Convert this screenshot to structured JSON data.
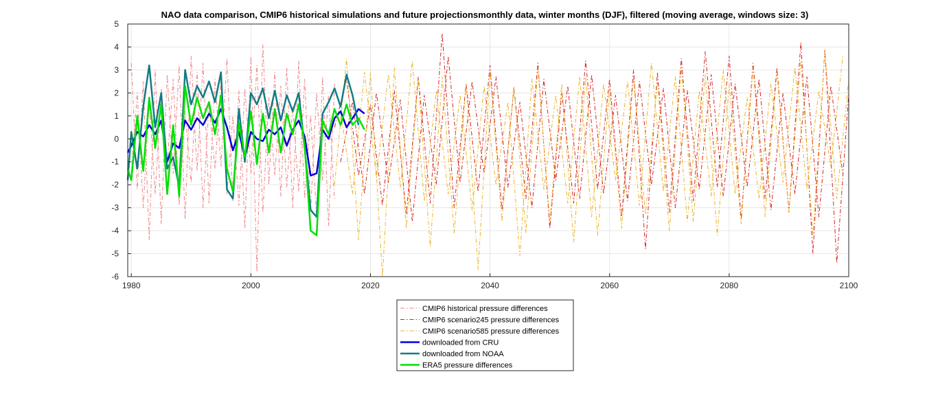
{
  "chart_data": {
    "type": "line",
    "title": "NAO data comparison, CMIP6 historical simulations and future projectionsmonthly data, winter months (DJF), filtered (moving average, windows size: 3)",
    "xlabel": "",
    "ylabel": "",
    "xlim": [
      1979.4,
      2100
    ],
    "ylim": [
      -6,
      5
    ],
    "x_ticks": [
      1980,
      2000,
      2020,
      2040,
      2060,
      2080,
      2100
    ],
    "y_ticks": [
      5,
      4,
      3,
      2,
      1,
      0,
      -1,
      -2,
      -3,
      -4,
      -5,
      -6
    ],
    "grid": true,
    "legend_position": "below",
    "series": [
      {
        "name": "CMIP6 historical pressure differences",
        "color": "#f08080",
        "style": "dashdot",
        "width": 1,
        "x": [
          1980,
          1981,
          1982,
          1983,
          1984,
          1985,
          1986,
          1987,
          1988,
          1989,
          1990,
          1991,
          1992,
          1993,
          1994,
          1995,
          1996,
          1997,
          1998,
          1999,
          2000,
          2001,
          2002,
          2003,
          2004,
          2005,
          2006,
          2007,
          2008,
          2009,
          2010,
          2011,
          2012,
          2013,
          2014
        ],
        "values": [
          3.3,
          -2.2,
          2.5,
          -4.4,
          3.0,
          -3.7,
          2.8,
          -1.5,
          3.2,
          -3.5,
          3.6,
          -1.4,
          3.3,
          -2.8,
          2.6,
          -1.2,
          3.5,
          -2.7,
          2.1,
          -3.9,
          3.6,
          -5.8,
          4.1,
          -2.0,
          2.9,
          -2.5,
          3.1,
          -3.0,
          3.4,
          -2.6,
          1.0,
          -3.4,
          2.7,
          -3.8,
          2.4
        ]
      },
      {
        "name": "CMIP6 historical pressure differences",
        "color": "#f08080",
        "style": "dashdot",
        "width": 1,
        "x": [
          1980,
          1981,
          1982,
          1983,
          1984,
          1985,
          1986,
          1987,
          1988,
          1989,
          1990,
          1991,
          1992,
          1993,
          1994,
          1995,
          1996,
          1997,
          1998,
          1999,
          2000,
          2001,
          2002,
          2003,
          2004,
          2005,
          2006,
          2007,
          2008,
          2009,
          2010,
          2011,
          2012,
          2013,
          2014
        ],
        "values": [
          -1.5,
          2.0,
          -3.0,
          1.6,
          -2.4,
          2.2,
          -1.1,
          2.6,
          -2.9,
          1.2,
          -1.9,
          2.9,
          -3.0,
          1.5,
          -1.3,
          2.5,
          -2.4,
          1.0,
          -2.9,
          2.2,
          -1.5,
          3.2,
          -3.2,
          1.8,
          -1.6,
          2.3,
          -2.1,
          1.4,
          -2.3,
          2.6,
          -3.1,
          2.0,
          -1.8,
          1.9,
          -2.7
        ]
      },
      {
        "name": "CMIP6 scenario245 pressure differences",
        "color": "#d81e1e",
        "style": "dashdot",
        "width": 1,
        "x": [
          2014,
          2016,
          2018,
          2020,
          2022,
          2024,
          2026,
          2028,
          2030,
          2032,
          2034,
          2036,
          2038,
          2040,
          2042,
          2044,
          2046,
          2048,
          2050,
          2052,
          2054,
          2056,
          2058,
          2060,
          2062,
          2064,
          2066,
          2068,
          2070,
          2072,
          2074,
          2076,
          2078,
          2080,
          2082,
          2084,
          2086,
          2088,
          2090,
          2092,
          2094,
          2096,
          2098,
          2100
        ],
        "values": [
          0.5,
          2.6,
          -1.6,
          1.5,
          -2.9,
          2.1,
          -3.3,
          2.7,
          -2.8,
          4.6,
          -3.0,
          2.4,
          -2.3,
          3.2,
          -3.1,
          2.2,
          -2.6,
          3.3,
          -3.9,
          2.0,
          -2.8,
          3.4,
          -2.2,
          2.6,
          -3.4,
          3.0,
          -4.8,
          2.9,
          -3.2,
          3.5,
          -2.7,
          3.8,
          -2.1,
          3.6,
          -3.5,
          3.3,
          -2.6,
          3.1,
          -3.2,
          4.2,
          -5.0,
          3.9,
          -5.4,
          2.0
        ]
      },
      {
        "name": "CMIP6 scenario245 pressure differences",
        "color": "#d81e1e",
        "style": "dashdot",
        "width": 1,
        "x": [
          2015,
          2017,
          2019,
          2021,
          2023,
          2025,
          2027,
          2029,
          2031,
          2033,
          2035,
          2037,
          2039,
          2041,
          2043,
          2045,
          2047,
          2049,
          2051,
          2053,
          2055,
          2057,
          2059,
          2061,
          2063,
          2065,
          2067,
          2069,
          2071,
          2073,
          2075,
          2077,
          2079,
          2081,
          2083,
          2085,
          2087,
          2089,
          2091,
          2093,
          2095,
          2097,
          2099
        ],
        "values": [
          -1.0,
          1.6,
          -2.4,
          2.0,
          -1.9,
          1.7,
          -3.6,
          1.9,
          -2.0,
          3.6,
          -1.9,
          2.5,
          -1.5,
          2.7,
          -2.1,
          1.6,
          -3.0,
          2.6,
          -1.8,
          2.3,
          -2.6,
          2.8,
          -2.4,
          1.9,
          -2.7,
          2.5,
          -2.0,
          2.2,
          -3.0,
          2.1,
          -2.2,
          2.8,
          -2.5,
          2.4,
          -2.1,
          2.6,
          -3.1,
          2.0,
          -2.4,
          2.7,
          -3.4,
          2.3,
          -1.5
        ]
      },
      {
        "name": "CMIP6 scenario585 pressure differences",
        "color": "#eeb220",
        "style": "dashdot",
        "width": 1,
        "x": [
          2014,
          2016,
          2018,
          2020,
          2022,
          2024,
          2026,
          2028,
          2030,
          2032,
          2034,
          2036,
          2038,
          2040,
          2042,
          2044,
          2046,
          2048,
          2050,
          2052,
          2054,
          2056,
          2058,
          2060,
          2062,
          2064,
          2066,
          2068,
          2070,
          2072,
          2074,
          2076,
          2078,
          2080,
          2082,
          2084,
          2086,
          2088,
          2090,
          2092,
          2094,
          2096,
          2098,
          2100
        ],
        "values": [
          -2.0,
          3.5,
          -4.4,
          2.9,
          -6.0,
          3.1,
          -3.9,
          2.6,
          -4.7,
          2.7,
          -4.1,
          2.4,
          -5.7,
          2.9,
          -3.6,
          2.3,
          -4.1,
          3.1,
          -3.6,
          2.4,
          -4.5,
          2.7,
          -4.2,
          2.2,
          -3.9,
          2.7,
          -3.3,
          2.5,
          -4.0,
          3.1,
          -3.6,
          2.8,
          -4.2,
          2.4,
          -3.7,
          3.1,
          -3.4,
          2.9,
          -3.2,
          3.4,
          -4.2,
          3.8,
          -2.6,
          2.6
        ]
      },
      {
        "name": "CMIP6 scenario585 pressure differences",
        "color": "#eeb220",
        "style": "dashdot",
        "width": 1,
        "x": [
          2015,
          2017,
          2019,
          2021,
          2023,
          2025,
          2027,
          2029,
          2031,
          2033,
          2035,
          2037,
          2039,
          2041,
          2043,
          2045,
          2047,
          2049,
          2051,
          2053,
          2055,
          2057,
          2059,
          2061,
          2063,
          2065,
          2067,
          2069,
          2071,
          2073,
          2075,
          2077,
          2079,
          2081,
          2083,
          2085,
          2087,
          2089,
          2091,
          2093,
          2095,
          2097,
          2099
        ],
        "values": [
          1.2,
          -2.4,
          2.9,
          -1.7,
          2.8,
          -2.1,
          3.4,
          -2.7,
          2.1,
          -2.4,
          1.9,
          -3.1,
          2.3,
          -2.0,
          1.6,
          -5.1,
          2.6,
          -2.2,
          1.9,
          -2.8,
          2.7,
          -3.4,
          2.4,
          -1.8,
          2.5,
          -2.9,
          3.3,
          -2.3,
          2.7,
          -3.6,
          2.1,
          -2.5,
          3.0,
          -2.4,
          1.8,
          -2.6,
          2.4,
          -1.9,
          3.1,
          -2.2,
          2.1,
          -1.2,
          3.6
        ]
      },
      {
        "name": "downloaded from CRU",
        "color": "#0000d8",
        "style": "solid",
        "width": 2.5,
        "x": [
          1979.4,
          1980,
          1981,
          1982,
          1983,
          1984,
          1985,
          1986,
          1987,
          1988,
          1989,
          1990,
          1991,
          1992,
          1993,
          1994,
          1995,
          1996,
          1997,
          1998,
          1999,
          2000,
          2001,
          2002,
          2003,
          2004,
          2005,
          2006,
          2007,
          2008,
          2009,
          2010,
          2011,
          2012,
          2013,
          2014,
          2015,
          2016,
          2017,
          2018,
          2019
        ],
        "values": [
          -0.6,
          -0.3,
          0.3,
          0.1,
          0.6,
          0.2,
          0.8,
          -1.0,
          -0.2,
          -0.4,
          0.8,
          0.4,
          0.9,
          0.6,
          1.1,
          0.7,
          1.3,
          0.5,
          -0.5,
          0.3,
          -0.8,
          0.3,
          0.0,
          -0.1,
          0.4,
          0.2,
          0.5,
          -0.3,
          0.4,
          0.8,
          0.1,
          -1.6,
          -1.5,
          0.4,
          0.0,
          0.9,
          1.2,
          0.5,
          0.9,
          1.3,
          1.1
        ]
      },
      {
        "name": "downloaded from NOAA",
        "color": "#127c84",
        "style": "solid",
        "width": 2.5,
        "x": [
          1979.4,
          1980,
          1981,
          1982,
          1983,
          1984,
          1985,
          1986,
          1987,
          1988,
          1989,
          1990,
          1991,
          1992,
          1993,
          1994,
          1995,
          1996,
          1997,
          1998,
          1999,
          2000,
          2001,
          2002,
          2003,
          2004,
          2005,
          2006,
          2007,
          2008,
          2009,
          2010,
          2011,
          2012,
          2013,
          2014,
          2015,
          2016,
          2017,
          2018
        ],
        "values": [
          -1.8,
          0.3,
          -1.3,
          1.4,
          3.2,
          0.5,
          2.0,
          -1.3,
          -0.8,
          -2.1,
          3.0,
          1.5,
          2.3,
          1.8,
          2.5,
          1.6,
          2.9,
          -2.2,
          -2.6,
          1.3,
          -1.0,
          2.0,
          1.5,
          2.2,
          0.9,
          2.1,
          0.8,
          1.9,
          1.2,
          2.0,
          -0.4,
          -3.1,
          -3.4,
          1.1,
          1.6,
          2.2,
          1.4,
          2.8,
          1.9,
          0.6
        ]
      },
      {
        "name": "ERA5 pressure differences",
        "color": "#00e000",
        "style": "solid",
        "width": 2.5,
        "x": [
          1979.4,
          1980,
          1981,
          1982,
          1983,
          1984,
          1985,
          1986,
          1987,
          1988,
          1989,
          1990,
          1991,
          1992,
          1993,
          1994,
          1995,
          1996,
          1997,
          1998,
          1999,
          2000,
          2001,
          2002,
          2003,
          2004,
          2005,
          2006,
          2007,
          2008,
          2009,
          2010,
          2011,
          2012,
          2013,
          2014,
          2015,
          2016,
          2017,
          2018,
          2019
        ],
        "values": [
          -1.3,
          -1.8,
          1.0,
          -1.4,
          1.8,
          -0.4,
          1.5,
          -2.4,
          0.6,
          -2.5,
          2.3,
          0.6,
          1.8,
          0.9,
          1.6,
          0.2,
          1.9,
          -1.3,
          -2.3,
          0.7,
          -0.8,
          1.2,
          -1.1,
          1.1,
          -0.6,
          1.3,
          -0.6,
          1.1,
          0.2,
          1.5,
          -0.3,
          -4.0,
          -4.2,
          0.8,
          0.2,
          1.3,
          0.6,
          1.5,
          0.6,
          0.9,
          0.4
        ]
      }
    ],
    "legend": [
      {
        "label": "CMIP6 historical pressure differences",
        "color": "#f08080",
        "style": "dashdot"
      },
      {
        "label": "CMIP6 scenario245 pressure differences",
        "color": "#d81e1e",
        "style": "dashdot"
      },
      {
        "label": "CMIP6 scenario585 pressure differences",
        "color": "#eeb220",
        "style": "dashdot"
      },
      {
        "label": "downloaded from CRU",
        "color": "#0000d8",
        "style": "solid"
      },
      {
        "label": "downloaded from NOAA",
        "color": "#127c84",
        "style": "solid"
      },
      {
        "label": "ERA5 pressure differences",
        "color": "#00e000",
        "style": "solid"
      }
    ]
  }
}
